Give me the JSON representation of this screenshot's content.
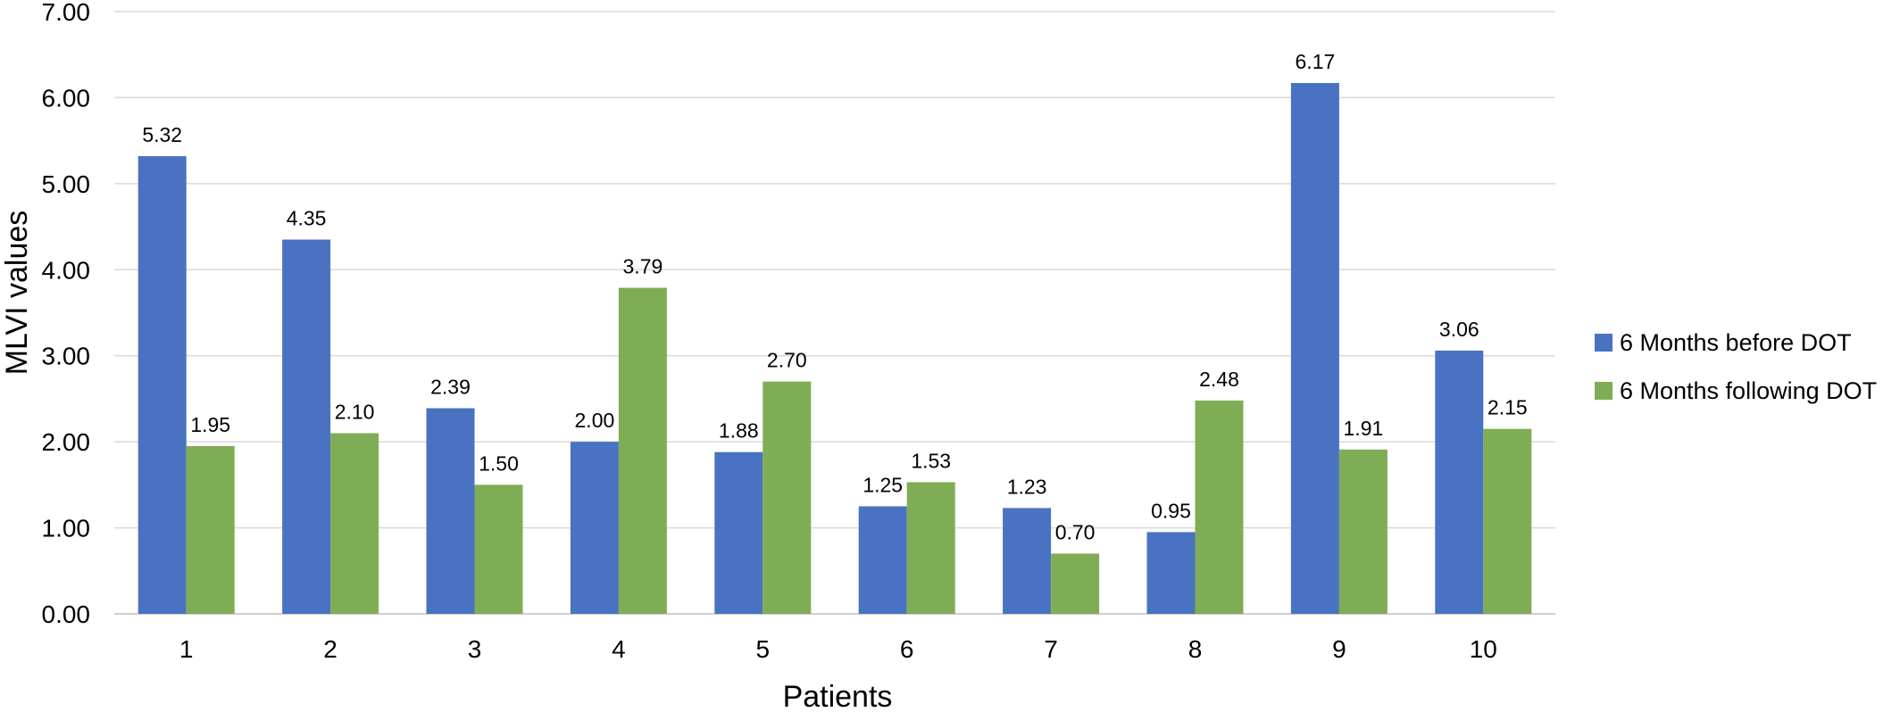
{
  "chart_data": {
    "type": "bar",
    "xlabel": "Patients",
    "ylabel": "MLVI values",
    "ylim": [
      0,
      7
    ],
    "ytick_step": 1,
    "ytick_decimals": 2,
    "grid": true,
    "legend_position": "right",
    "categories": [
      "1",
      "2",
      "3",
      "4",
      "5",
      "6",
      "7",
      "8",
      "9",
      "10"
    ],
    "series": [
      {
        "name": "6 Months before DOT",
        "color": "#4A72C2",
        "values": [
          5.32,
          4.35,
          2.39,
          2.0,
          1.88,
          1.25,
          1.23,
          0.95,
          6.17,
          3.06
        ]
      },
      {
        "name": "6 Months following DOT",
        "color": "#7FAD55",
        "values": [
          1.95,
          2.1,
          1.5,
          3.79,
          2.7,
          1.53,
          0.7,
          2.48,
          1.91,
          2.15
        ]
      }
    ]
  }
}
